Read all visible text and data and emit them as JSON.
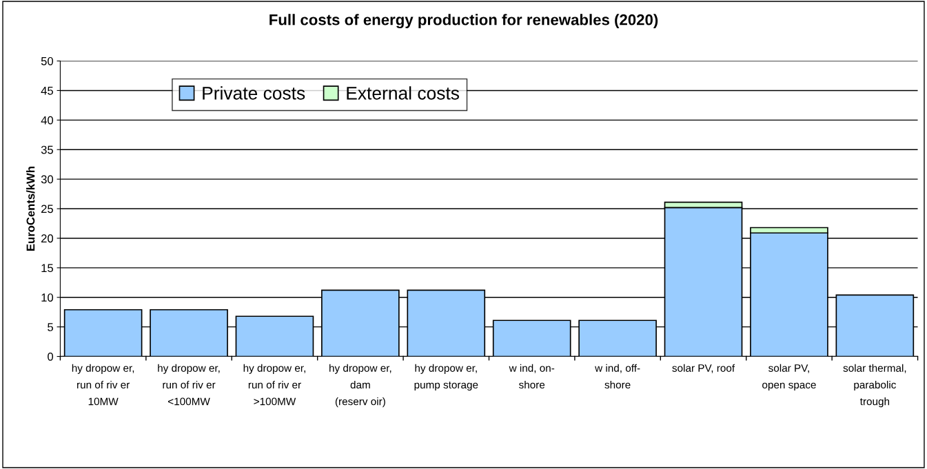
{
  "chart_data": {
    "type": "bar",
    "title": "Full costs of energy production for renewables (2020)",
    "ylabel": "EuroCents/kWh",
    "categories": [
      "hy dropow er,\nrun of riv er\n10MW",
      "hy dropow er,\nrun of riv er\n<100MW",
      "hy dropow er,\nrun of riv er\n>100MW",
      "hy dropow er,\ndam\n(reserv oir)",
      "hy dropow er,\npump storage",
      "w ind, on-\nshore",
      "w ind, off-\nshore",
      "solar PV, roof",
      "solar PV,\nopen space",
      "solar thermal,\nparabolic\ntrough"
    ],
    "stacked": true,
    "series": [
      {
        "name": "Private costs",
        "color": "#99ccff",
        "values": [
          7.9,
          7.9,
          6.8,
          11.2,
          11.2,
          6.1,
          6.1,
          25.2,
          20.9,
          10.4
        ]
      },
      {
        "name": "External costs",
        "color": "#ccffcc",
        "values": [
          0,
          0,
          0,
          0,
          0,
          0,
          0,
          0.9,
          0.9,
          0
        ]
      }
    ],
    "ylim": [
      0,
      50
    ],
    "yticks": [
      0,
      5,
      10,
      15,
      20,
      25,
      30,
      35,
      40,
      45,
      50
    ],
    "grid": "y",
    "legend": "top left"
  }
}
